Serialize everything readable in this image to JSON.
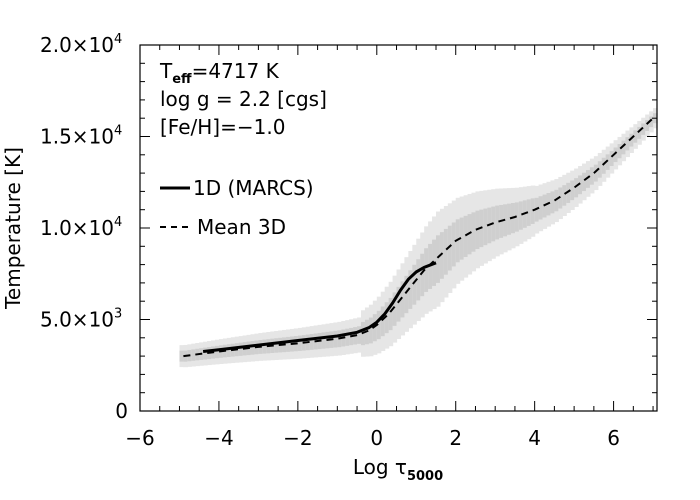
{
  "chart_data": {
    "type": "line",
    "xlabel": "Log τ5000",
    "xlabel_main": "Log τ",
    "xlabel_sub": "5000",
    "ylabel": "Temperature [K]",
    "xlim": [
      -6,
      7.1
    ],
    "ylim": [
      0,
      20000
    ],
    "x_ticks": [
      {
        "value": -6,
        "label": "−6"
      },
      {
        "value": -4,
        "label": "−4"
      },
      {
        "value": -2,
        "label": "−2"
      },
      {
        "value": 0,
        "label": "0"
      },
      {
        "value": 2,
        "label": "2"
      },
      {
        "value": 4,
        "label": "4"
      },
      {
        "value": 6,
        "label": "6"
      }
    ],
    "y_ticks": [
      {
        "value": 0,
        "mantissa": "0",
        "exponent": ""
      },
      {
        "value": 5000,
        "mantissa": "5.0×10",
        "exponent": "3"
      },
      {
        "value": 10000,
        "mantissa": "1.0×10",
        "exponent": "4"
      },
      {
        "value": 15000,
        "mantissa": "1.5×10",
        "exponent": "4"
      },
      {
        "value": 20000,
        "mantissa": "2.0×10",
        "exponent": "4"
      }
    ],
    "annotations": {
      "teff_prefix": "T",
      "teff_sub": "eff",
      "teff_value": "=4717 K",
      "logg": "log g = 2.2 [cgs]",
      "feh": "[Fe/H]=−1.0"
    },
    "legend_position": "top-left",
    "series": [
      {
        "name": "1D (MARCS)",
        "style": "solid",
        "color": "#000000",
        "x": [
          -4.4,
          -4.0,
          -3.0,
          -2.0,
          -1.0,
          -0.5,
          -0.2,
          0.0,
          0.2,
          0.4,
          0.6,
          0.8,
          1.0,
          1.2,
          1.5
        ],
        "y": [
          3250,
          3350,
          3600,
          3850,
          4100,
          4300,
          4550,
          4850,
          5300,
          5900,
          6600,
          7200,
          7600,
          7850,
          8100
        ]
      },
      {
        "name": "Mean 3D",
        "style": "dashed",
        "color": "#000000",
        "x": [
          -4.9,
          -4.0,
          -3.0,
          -2.0,
          -1.0,
          -0.5,
          -0.2,
          0.0,
          0.3,
          0.6,
          0.9,
          1.2,
          1.6,
          2.0,
          2.5,
          3.0,
          3.5,
          4.0,
          4.5,
          5.0,
          5.5,
          6.0,
          6.5,
          7.0
        ],
        "y": [
          3000,
          3250,
          3500,
          3700,
          3950,
          4150,
          4400,
          4700,
          5300,
          6100,
          6900,
          7700,
          8500,
          9300,
          9900,
          10300,
          10600,
          11000,
          11500,
          12200,
          13000,
          14000,
          15000,
          16000
        ]
      }
    ]
  }
}
